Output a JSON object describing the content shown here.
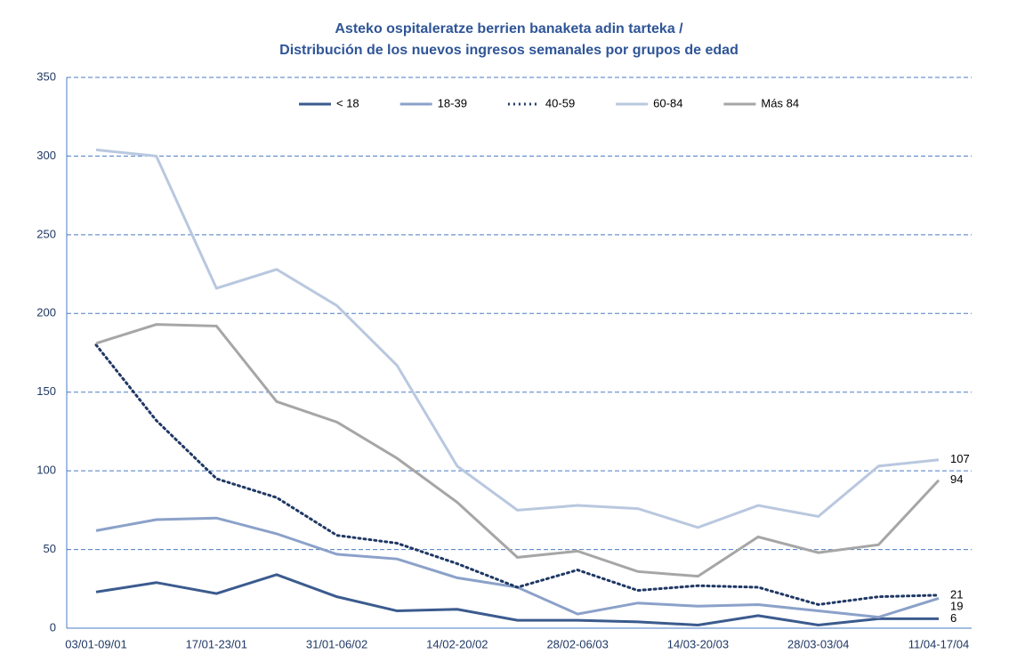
{
  "chart_data": {
    "type": "line",
    "title": [
      "Asteko ospitaleratze berrien banaketa adin tarteka /",
      "Distribución de los nuevos ingresos semanales por grupos de edad"
    ],
    "categories": [
      "03/01-09/01",
      null,
      "17/01-23/01",
      null,
      "31/01-06/02",
      null,
      "14/02-20/02",
      null,
      "28/02-06/03",
      null,
      "14/03-20/03",
      null,
      "28/03-03/04",
      null,
      "11/04-17/04"
    ],
    "series": [
      {
        "name": "< 18",
        "color": "#3b5b8e",
        "style": "solid",
        "values": [
          23,
          29,
          22,
          34,
          20,
          11,
          12,
          5,
          5,
          4,
          2,
          8,
          2,
          6,
          6
        ]
      },
      {
        "name": "18-39",
        "color": "#8ba1c9",
        "style": "solid",
        "values": [
          62,
          69,
          70,
          60,
          47,
          44,
          32,
          26,
          9,
          16,
          14,
          15,
          11,
          7,
          19
        ]
      },
      {
        "name": "40-59",
        "color": "#1f3864",
        "style": "dotted",
        "values": [
          180,
          132,
          95,
          83,
          59,
          54,
          41,
          26,
          37,
          24,
          27,
          26,
          15,
          20,
          21
        ]
      },
      {
        "name": "60-84",
        "color": "#b9c8df",
        "style": "solid",
        "values": [
          304,
          300,
          216,
          228,
          205,
          167,
          103,
          75,
          78,
          76,
          64,
          78,
          71,
          103,
          107
        ]
      },
      {
        "name": "Más 84",
        "color": "#a6a6a6",
        "style": "solid",
        "values": [
          181,
          193,
          192,
          144,
          131,
          108,
          80,
          45,
          49,
          36,
          33,
          58,
          48,
          53,
          94
        ]
      }
    ],
    "ylim": [
      0,
      350
    ],
    "yticks": [
      0,
      50,
      100,
      150,
      200,
      250,
      300,
      350
    ],
    "grid": true,
    "legend": "top"
  }
}
